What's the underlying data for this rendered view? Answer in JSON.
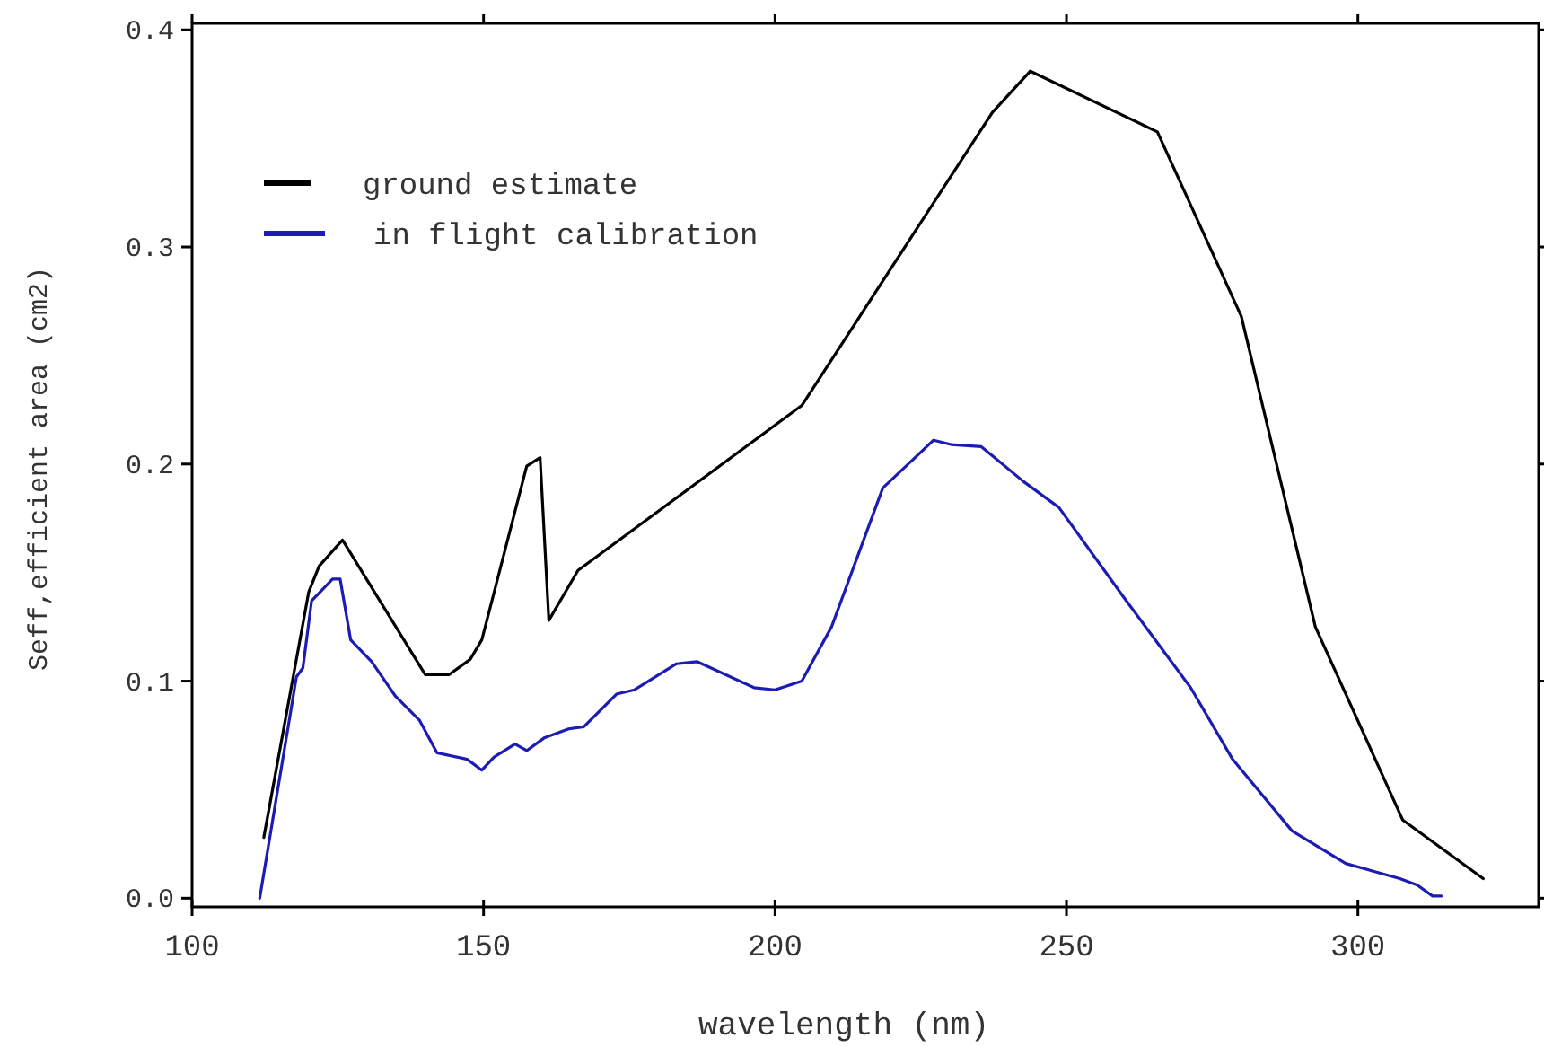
{
  "chart_data": {
    "type": "line",
    "xlabel": "wavelength (nm)",
    "ylabel": "Seff,efficient area (cm2)",
    "xlim": [
      100,
      331
    ],
    "ylim": [
      -0.004,
      0.403
    ],
    "xticks": [
      100,
      150,
      200,
      250,
      300
    ],
    "yticks": [
      {
        "value": 0,
        "label": "0.0"
      },
      0.1,
      0.2,
      0.3,
      0.4
    ],
    "grid": false,
    "legend": "top left",
    "marker": "none",
    "line_style": "solid",
    "series": [
      {
        "name": "ground estimate",
        "color": "#000000",
        "x": [
          112.3,
          120,
          121.8,
          125.8,
          140,
          144.1,
          147.7,
          149.7,
          157.4,
          159.7,
          161.2,
          166.2,
          204.6,
          237.3,
          243.8,
          265.6,
          280,
          292.7,
          307.7,
          321.5
        ],
        "values": [
          0.028,
          0.141,
          0.153,
          0.165,
          0.103,
          0.103,
          0.11,
          0.119,
          0.199,
          0.203,
          0.128,
          0.151,
          0.227,
          0.362,
          0.381,
          0.353,
          0.268,
          0.125,
          0.036,
          0.009
        ]
      },
      {
        "name": "in flight calibration",
        "color": "#1c1cb4",
        "x": [
          111.6,
          117.9,
          119,
          120.5,
          124.1,
          125.4,
          127.2,
          130.8,
          134.9,
          139,
          142,
          147.2,
          149.7,
          151.8,
          155.4,
          157.4,
          160.5,
          164.6,
          167.2,
          172.8,
          175.9,
          183.1,
          186.6,
          196.4,
          200,
          204.6,
          209.7,
          218.5,
          227.2,
          230.2,
          235.4,
          242.6,
          248.7,
          260,
          271.3,
          278.5,
          288.7,
          297.9,
          307.2,
          310.2,
          312.8,
          314.3
        ],
        "values": [
          0.0,
          0.102,
          0.106,
          0.137,
          0.147,
          0.147,
          0.119,
          0.109,
          0.093,
          0.082,
          0.067,
          0.064,
          0.059,
          0.065,
          0.071,
          0.068,
          0.074,
          0.078,
          0.079,
          0.094,
          0.096,
          0.108,
          0.109,
          0.097,
          0.096,
          0.1,
          0.125,
          0.189,
          0.211,
          0.209,
          0.208,
          0.192,
          0.18,
          0.138,
          0.097,
          0.064,
          0.031,
          0.016,
          0.009,
          0.006,
          0.001,
          0.001
        ]
      }
    ]
  }
}
